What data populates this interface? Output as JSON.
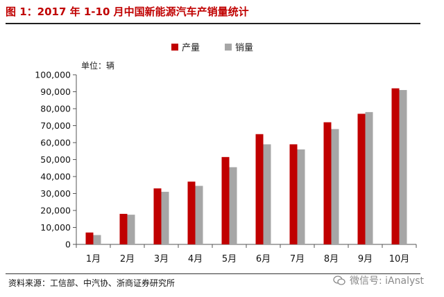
{
  "figure": {
    "title": "图 1：2017 年 1-10 月中国新能源汽车产销量统计",
    "unit": "单位：辆",
    "source": "资料来源：工信部、中汽协、浙商证券研究所",
    "watermark": "微信号: iAnalyst"
  },
  "colors": {
    "production": "#c00000",
    "sales": "#a6a6a6",
    "title": "#c00000"
  },
  "chart_data": {
    "type": "bar",
    "categories": [
      "1月",
      "2月",
      "3月",
      "4月",
      "5月",
      "6月",
      "7月",
      "8月",
      "9月",
      "10月"
    ],
    "series": [
      {
        "name": "产量",
        "values": [
          7000,
          18000,
          33000,
          37000,
          51500,
          65000,
          59000,
          72000,
          77000,
          92000
        ]
      },
      {
        "name": "销量",
        "values": [
          5500,
          17500,
          31000,
          34500,
          45500,
          59000,
          56000,
          68000,
          78000,
          91000
        ]
      }
    ],
    "ylim": [
      0,
      100000
    ],
    "yticks": [
      0,
      10000,
      20000,
      30000,
      40000,
      50000,
      60000,
      70000,
      80000,
      90000,
      100000
    ],
    "ytick_labels": [
      "0",
      "10,000",
      "20,000",
      "30,000",
      "40,000",
      "50,000",
      "60,000",
      "70,000",
      "80,000",
      "90,000",
      "100,000"
    ],
    "legend_position": "top-center",
    "grid": false
  }
}
